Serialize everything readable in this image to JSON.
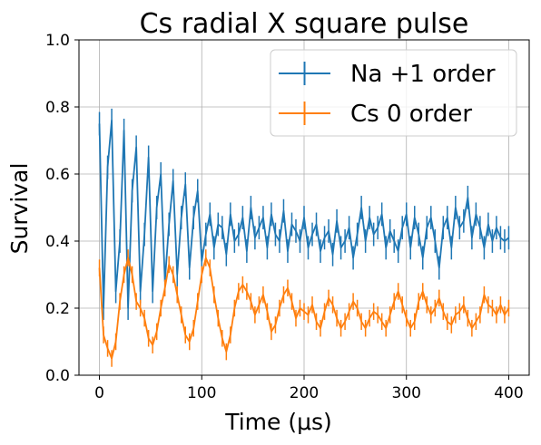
{
  "chart_data": {
    "type": "line",
    "title": "Cs radial X square pulse",
    "xlabel": "Time (μs)",
    "ylabel": "Survival",
    "xlim": [
      -20,
      420
    ],
    "ylim": [
      0.0,
      1.0
    ],
    "xticks": [
      0,
      100,
      200,
      300,
      400
    ],
    "yticks": [
      0.0,
      0.2,
      0.4,
      0.6,
      0.8,
      1.0
    ],
    "xtick_labels": [
      "0",
      "100",
      "200",
      "300",
      "400"
    ],
    "ytick_labels": [
      "0.0",
      "0.2",
      "0.4",
      "0.6",
      "0.8",
      "1.0"
    ],
    "grid": true,
    "legend_position": "top-right",
    "error_bars": true,
    "colors": {
      "na": "#1f77b4",
      "cs": "#ff7f0e"
    },
    "series": [
      {
        "name": "Na +1 order",
        "color": "#1f77b4",
        "x": [
          0,
          4,
          8,
          12,
          16,
          20,
          24,
          28,
          32,
          36,
          40,
          44,
          48,
          52,
          56,
          60,
          64,
          68,
          72,
          76,
          80,
          84,
          88,
          92,
          96,
          100,
          104,
          108,
          112,
          116,
          120,
          124,
          128,
          132,
          136,
          140,
          144,
          148,
          152,
          156,
          160,
          164,
          168,
          172,
          176,
          180,
          184,
          188,
          192,
          196,
          200,
          204,
          208,
          212,
          216,
          220,
          224,
          228,
          232,
          236,
          240,
          244,
          248,
          252,
          256,
          260,
          264,
          268,
          272,
          276,
          280,
          284,
          288,
          292,
          296,
          300,
          304,
          308,
          312,
          316,
          320,
          324,
          328,
          332,
          336,
          340,
          344,
          348,
          352,
          356,
          360,
          364,
          368,
          372,
          376,
          380,
          384,
          388,
          392,
          396,
          400
        ],
        "y": [
          0.75,
          0.2,
          0.62,
          0.76,
          0.25,
          0.4,
          0.73,
          0.2,
          0.55,
          0.68,
          0.25,
          0.42,
          0.65,
          0.25,
          0.5,
          0.6,
          0.28,
          0.45,
          0.58,
          0.3,
          0.47,
          0.57,
          0.32,
          0.47,
          0.55,
          0.34,
          0.42,
          0.48,
          0.38,
          0.45,
          0.44,
          0.36,
          0.48,
          0.4,
          0.42,
          0.47,
          0.37,
          0.5,
          0.41,
          0.44,
          0.47,
          0.38,
          0.48,
          0.42,
          0.4,
          0.49,
          0.37,
          0.45,
          0.43,
          0.4,
          0.47,
          0.38,
          0.42,
          0.45,
          0.37,
          0.41,
          0.43,
          0.36,
          0.46,
          0.38,
          0.4,
          0.44,
          0.35,
          0.42,
          0.5,
          0.4,
          0.47,
          0.42,
          0.44,
          0.48,
          0.38,
          0.43,
          0.4,
          0.37,
          0.44,
          0.48,
          0.38,
          0.47,
          0.42,
          0.35,
          0.44,
          0.47,
          0.4,
          0.32,
          0.44,
          0.47,
          0.38,
          0.5,
          0.44,
          0.46,
          0.53,
          0.41,
          0.48,
          0.44,
          0.38,
          0.45,
          0.4,
          0.44,
          0.41,
          0.4,
          0.41
        ],
        "yerr": 0.035
      },
      {
        "name": "Cs 0 order",
        "color": "#ff7f0e",
        "x": [
          0,
          4,
          8,
          12,
          16,
          20,
          24,
          28,
          32,
          36,
          40,
          44,
          48,
          52,
          56,
          60,
          64,
          68,
          72,
          76,
          80,
          84,
          88,
          92,
          96,
          100,
          104,
          108,
          112,
          116,
          120,
          124,
          128,
          132,
          136,
          140,
          144,
          148,
          152,
          156,
          160,
          164,
          168,
          172,
          176,
          180,
          184,
          188,
          192,
          196,
          200,
          204,
          208,
          212,
          216,
          220,
          224,
          228,
          232,
          236,
          240,
          244,
          248,
          252,
          256,
          260,
          264,
          268,
          272,
          276,
          280,
          284,
          288,
          292,
          296,
          300,
          304,
          308,
          312,
          316,
          320,
          324,
          328,
          332,
          336,
          340,
          344,
          348,
          352,
          356,
          360,
          364,
          368,
          372,
          376,
          380,
          384,
          388,
          392,
          396,
          400
        ],
        "y": [
          0.32,
          0.12,
          0.08,
          0.05,
          0.1,
          0.22,
          0.3,
          0.35,
          0.3,
          0.22,
          0.2,
          0.17,
          0.11,
          0.09,
          0.13,
          0.2,
          0.26,
          0.33,
          0.3,
          0.24,
          0.18,
          0.12,
          0.1,
          0.14,
          0.22,
          0.3,
          0.35,
          0.32,
          0.24,
          0.17,
          0.11,
          0.07,
          0.12,
          0.2,
          0.25,
          0.27,
          0.25,
          0.22,
          0.18,
          0.21,
          0.24,
          0.19,
          0.13,
          0.15,
          0.2,
          0.24,
          0.26,
          0.22,
          0.17,
          0.2,
          0.19,
          0.18,
          0.21,
          0.16,
          0.14,
          0.19,
          0.23,
          0.21,
          0.17,
          0.14,
          0.16,
          0.19,
          0.22,
          0.2,
          0.16,
          0.14,
          0.17,
          0.19,
          0.18,
          0.16,
          0.14,
          0.18,
          0.22,
          0.25,
          0.21,
          0.17,
          0.14,
          0.16,
          0.22,
          0.25,
          0.21,
          0.18,
          0.2,
          0.23,
          0.19,
          0.16,
          0.15,
          0.18,
          0.19,
          0.21,
          0.17,
          0.14,
          0.16,
          0.18,
          0.24,
          0.21,
          0.2,
          0.18,
          0.21,
          0.18,
          0.2
        ],
        "yerr": 0.025
      }
    ]
  }
}
